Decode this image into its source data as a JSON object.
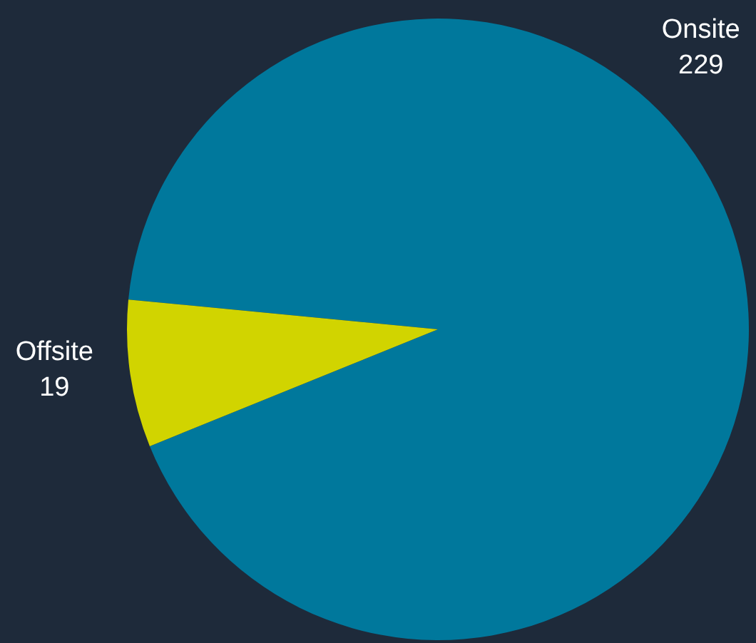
{
  "chart_data": {
    "type": "pie",
    "categories": [
      "Onsite",
      "Offsite"
    ],
    "values": [
      229,
      19
    ],
    "colors": [
      "#00789c",
      "#d1d400"
    ],
    "data_labels": true,
    "legend": false
  }
}
